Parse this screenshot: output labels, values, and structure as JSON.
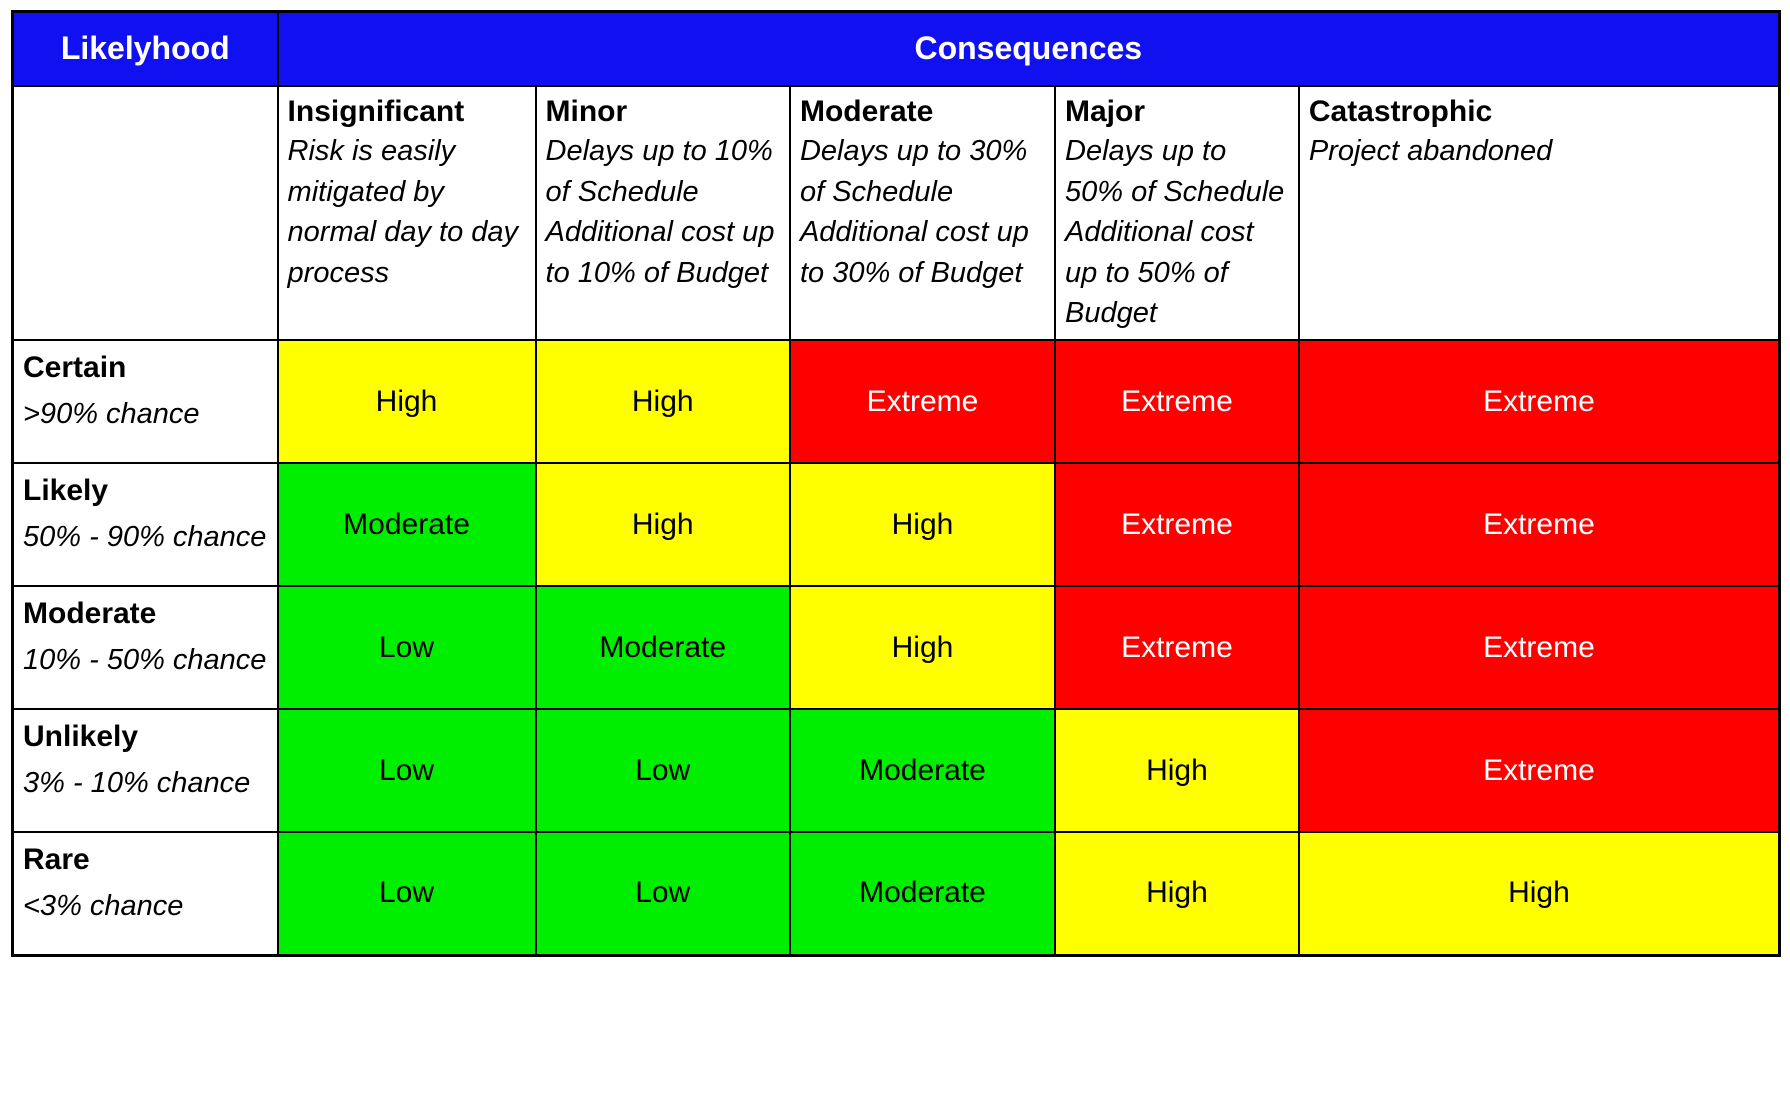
{
  "header": {
    "likelihood_label": "Likelyhood",
    "consequences_label": "Consequences"
  },
  "colors": {
    "header_bg": "#1010F0",
    "header_fg": "#FFFFFF",
    "border": "#000000"
  },
  "chart_data": {
    "type": "heatmap",
    "xlabel": "Consequences",
    "ylabel": "Likelyhood",
    "legend_position": "none",
    "columns": [
      {
        "title": "Insignificant",
        "description": "Risk is easily mitigated by normal day to day process"
      },
      {
        "title": "Minor",
        "description": "Delays up to 10% of Schedule Additional cost up to 10% of Budget"
      },
      {
        "title": "Moderate",
        "description": "Delays up to 30% of Schedule Additional cost up to 30% of Budget"
      },
      {
        "title": "Major",
        "description": "Delays up to 50% of Schedule Additional cost up to 50% of Budget"
      },
      {
        "title": "Catastrophic",
        "description": "Project abandoned"
      }
    ],
    "rows": [
      {
        "title": "Certain",
        "description": ">90% chance",
        "values": [
          "High",
          "High",
          "Extreme",
          "Extreme",
          "Extreme"
        ]
      },
      {
        "title": "Likely",
        "description": "50% - 90% chance",
        "values": [
          "Moderate",
          "High",
          "High",
          "Extreme",
          "Extreme"
        ]
      },
      {
        "title": "Moderate",
        "description": "10% - 50% chance",
        "values": [
          "Low",
          "Moderate",
          "High",
          "Extreme",
          "Extreme"
        ]
      },
      {
        "title": "Unlikely",
        "description": "3% - 10% chance",
        "values": [
          "Low",
          "Low",
          "Moderate",
          "High",
          "Extreme"
        ]
      },
      {
        "title": "Rare",
        "description": "<3% chance",
        "values": [
          "Low",
          "Low",
          "Moderate",
          "High",
          "High"
        ]
      }
    ],
    "levels": {
      "Low": {
        "bg": "#00EE00",
        "fg": "#000000"
      },
      "Moderate": {
        "bg": "#00EE00",
        "fg": "#000000"
      },
      "High": {
        "bg": "#FFFF00",
        "fg": "#000000"
      },
      "Extreme": {
        "bg": "#FF0000",
        "fg": "#FFFFFF"
      }
    }
  }
}
